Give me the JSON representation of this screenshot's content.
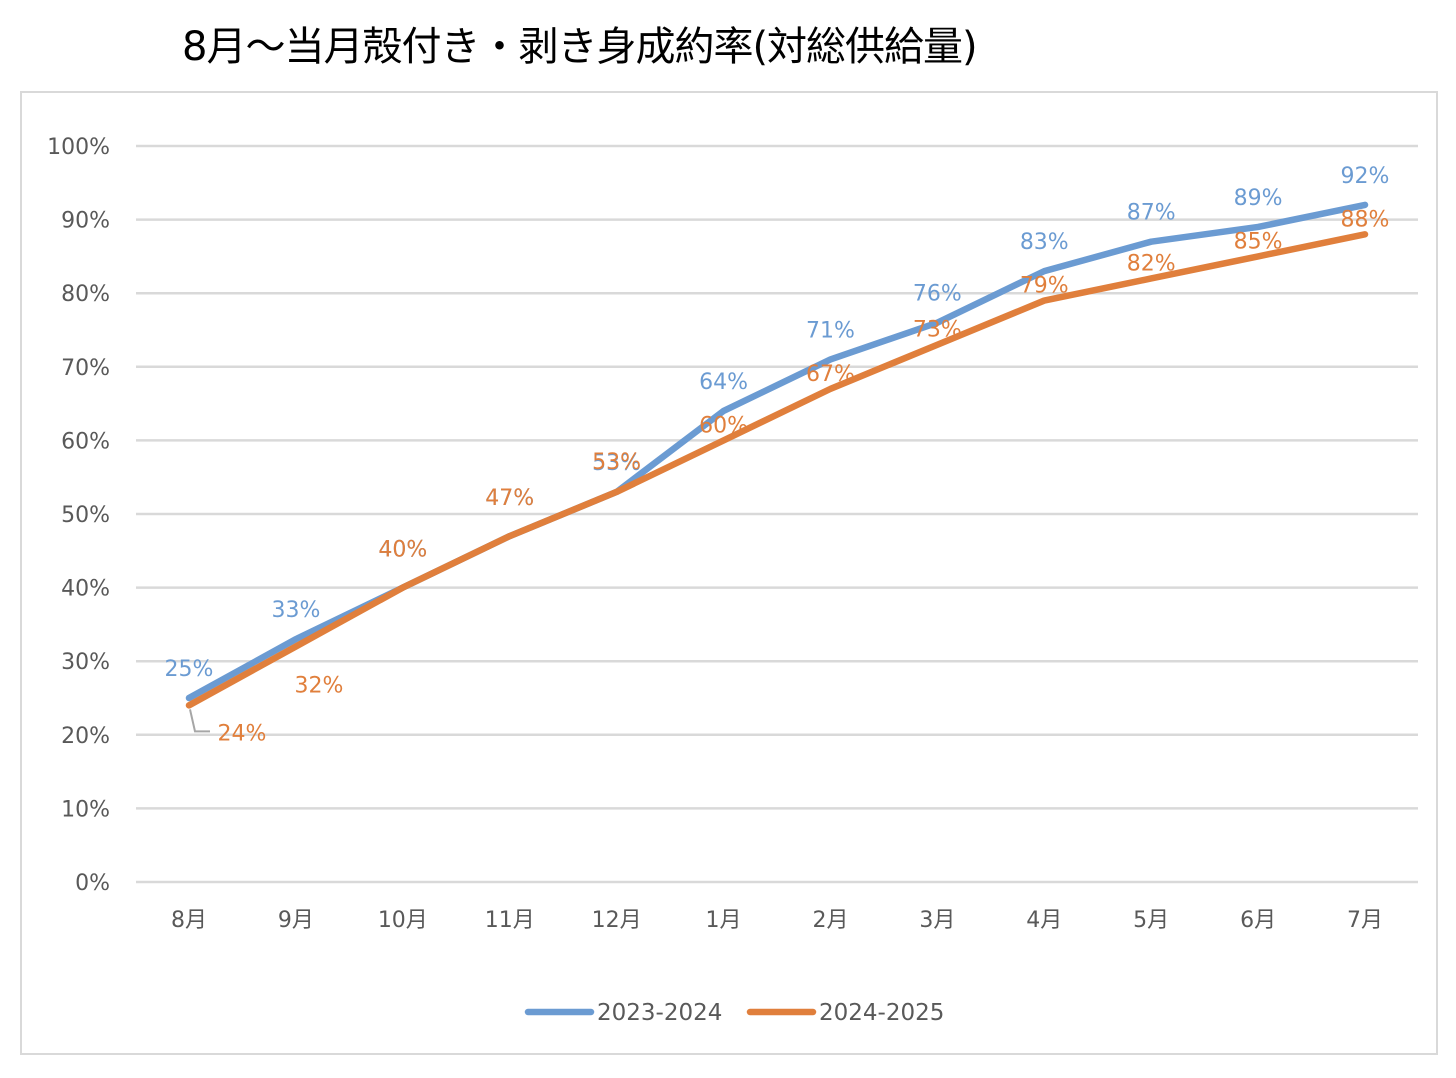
{
  "title": "8月～当月殻付き・剥き身成約率(対総供給量)",
  "chart_data": {
    "type": "line",
    "title": "8月～当月殻付き・剥き身成約率(対総供給量)",
    "categories": [
      "8月",
      "9月",
      "10月",
      "11月",
      "12月",
      "1月",
      "2月",
      "3月",
      "4月",
      "5月",
      "6月",
      "7月"
    ],
    "ylim": [
      0,
      100
    ],
    "y_ticks": [
      "0%",
      "10%",
      "20%",
      "30%",
      "40%",
      "50%",
      "60%",
      "70%",
      "80%",
      "90%",
      "100%"
    ],
    "grid": true,
    "legend_position": "bottom",
    "series": [
      {
        "name": "2023-2024",
        "color": "#6b9bd2",
        "values": [
          25,
          33,
          40,
          47,
          53,
          64,
          71,
          76,
          83,
          87,
          89,
          92
        ],
        "labels": [
          "25%",
          "33%",
          "40%",
          "47%",
          "53%",
          "64%",
          "71%",
          "76%",
          "83%",
          "87%",
          "89%",
          "92%"
        ]
      },
      {
        "name": "2024-2025",
        "color": "#e07f3c",
        "values": [
          24,
          32,
          40,
          47,
          53,
          60,
          67,
          73,
          79,
          82,
          85,
          88
        ],
        "labels": [
          "24%",
          "32%",
          "40%",
          "47%",
          "53%",
          "60%",
          "67%",
          "73%",
          "79%",
          "82%",
          "85%",
          "88%"
        ]
      }
    ]
  }
}
